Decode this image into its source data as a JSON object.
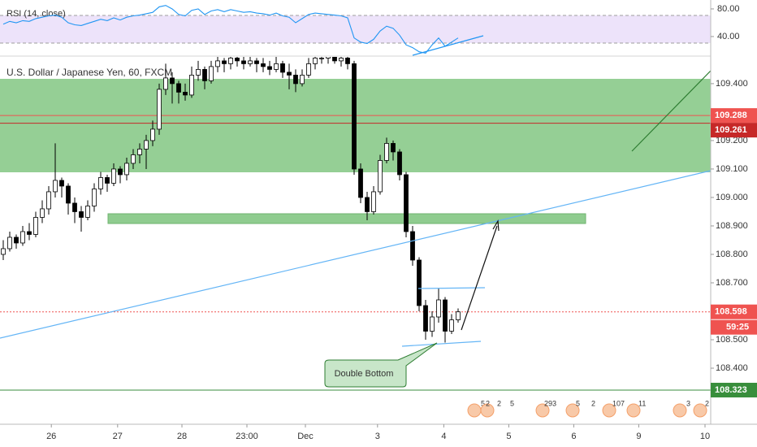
{
  "chart_data": {
    "type": "candlestick",
    "title": "U.S. Dollar / Japanese Yen, 60, FXCM",
    "up_color": "#ffffff",
    "down_color": "#000000",
    "wick_color": "#000000",
    "candles": [
      [
        108.8,
        108.85,
        108.78,
        108.82
      ],
      [
        108.82,
        108.88,
        108.81,
        108.86
      ],
      [
        108.86,
        108.87,
        108.82,
        108.84
      ],
      [
        108.84,
        108.9,
        108.83,
        108.88
      ],
      [
        108.88,
        108.91,
        108.85,
        108.87
      ],
      [
        108.87,
        108.95,
        108.86,
        108.93
      ],
      [
        108.93,
        108.99,
        108.91,
        108.96
      ],
      [
        108.96,
        109.04,
        108.94,
        109.02
      ],
      [
        109.02,
        109.19,
        109.0,
        109.06
      ],
      [
        109.06,
        109.07,
        109.0,
        109.04
      ],
      [
        109.04,
        109.05,
        108.94,
        108.98
      ],
      [
        108.98,
        109.0,
        108.91,
        108.95
      ],
      [
        108.95,
        108.97,
        108.88,
        108.93
      ],
      [
        108.93,
        108.99,
        108.92,
        108.97
      ],
      [
        108.97,
        109.05,
        108.95,
        109.03
      ],
      [
        109.03,
        109.09,
        109.01,
        109.07
      ],
      [
        109.07,
        109.08,
        109.02,
        109.05
      ],
      [
        109.05,
        109.12,
        109.04,
        109.1
      ],
      [
        109.1,
        109.11,
        109.05,
        109.08
      ],
      [
        109.08,
        109.14,
        109.06,
        109.12
      ],
      [
        109.12,
        109.17,
        109.1,
        109.15
      ],
      [
        109.15,
        109.19,
        109.12,
        109.17
      ],
      [
        109.17,
        109.22,
        109.1,
        109.2
      ],
      [
        109.2,
        109.27,
        109.18,
        109.24
      ],
      [
        109.24,
        109.4,
        109.22,
        109.38
      ],
      [
        109.38,
        109.47,
        109.36,
        109.42
      ],
      [
        109.42,
        109.44,
        109.33,
        109.4
      ],
      [
        109.4,
        109.41,
        109.33,
        109.37
      ],
      [
        109.37,
        109.4,
        109.34,
        109.36
      ],
      [
        109.36,
        109.46,
        109.35,
        109.43
      ],
      [
        109.43,
        109.48,
        109.41,
        109.45
      ],
      [
        109.45,
        109.46,
        109.38,
        109.41
      ],
      [
        109.41,
        109.48,
        109.4,
        109.46
      ],
      [
        109.46,
        109.5,
        109.44,
        109.48
      ],
      [
        109.48,
        109.49,
        109.44,
        109.47
      ],
      [
        109.47,
        109.5,
        109.45,
        109.49
      ],
      [
        109.49,
        109.5,
        109.46,
        109.48
      ],
      [
        109.48,
        109.5,
        109.45,
        109.47
      ],
      [
        109.47,
        109.5,
        109.46,
        109.48
      ],
      [
        109.48,
        109.49,
        109.44,
        109.47
      ],
      [
        109.47,
        109.49,
        109.44,
        109.46
      ],
      [
        109.46,
        109.48,
        109.43,
        109.45
      ],
      [
        109.45,
        109.5,
        109.44,
        109.47
      ],
      [
        109.47,
        109.48,
        109.42,
        109.44
      ],
      [
        109.44,
        109.47,
        109.38,
        109.43
      ],
      [
        109.43,
        109.45,
        109.37,
        109.4
      ],
      [
        109.4,
        109.45,
        109.39,
        109.43
      ],
      [
        109.43,
        109.49,
        109.42,
        109.47
      ],
      [
        109.47,
        109.5,
        109.45,
        109.49
      ],
      [
        109.49,
        109.5,
        109.47,
        109.49
      ],
      [
        109.49,
        109.51,
        109.47,
        109.5
      ],
      [
        109.5,
        109.51,
        109.47,
        109.48
      ],
      [
        109.48,
        109.5,
        109.46,
        109.49
      ],
      [
        109.49,
        109.5,
        109.45,
        109.47
      ],
      [
        109.47,
        109.48,
        109.08,
        109.1
      ],
      [
        109.1,
        109.12,
        108.98,
        109.0
      ],
      [
        109.0,
        109.02,
        108.92,
        108.95
      ],
      [
        108.95,
        109.04,
        108.94,
        109.02
      ],
      [
        109.02,
        109.15,
        109.01,
        109.13
      ],
      [
        109.13,
        109.21,
        109.12,
        109.19
      ],
      [
        109.19,
        109.2,
        109.13,
        109.16
      ],
      [
        109.16,
        109.17,
        109.06,
        109.08
      ],
      [
        109.08,
        109.09,
        108.86,
        108.88
      ],
      [
        108.88,
        108.9,
        108.76,
        108.78
      ],
      [
        108.78,
        108.79,
        108.6,
        108.62
      ],
      [
        108.62,
        108.64,
        108.5,
        108.53
      ],
      [
        108.53,
        108.6,
        108.51,
        108.58
      ],
      [
        108.58,
        108.68,
        108.56,
        108.64
      ],
      [
        108.64,
        108.65,
        108.49,
        108.53
      ],
      [
        108.53,
        108.59,
        108.52,
        108.57
      ],
      [
        108.57,
        108.61,
        108.56,
        108.598
      ]
    ],
    "xlim": [
      -0.5,
      108.875
    ],
    "xticks": [
      {
        "value": 7.4,
        "label": "26"
      },
      {
        "value": 17.6,
        "label": "27"
      },
      {
        "value": 27.5,
        "label": "28"
      },
      {
        "value": 37.5,
        "label": "23:00"
      },
      {
        "value": 46.5,
        "label": "Dec"
      },
      {
        "value": 57.6,
        "label": "3"
      },
      {
        "value": 67.8,
        "label": "4"
      },
      {
        "value": 77.8,
        "label": "5"
      },
      {
        "value": 87.8,
        "label": "6"
      },
      {
        "value": 97.8,
        "label": "9"
      },
      {
        "value": 108,
        "label": "10"
      }
    ],
    "ylim": [
      108.203,
      109.494
    ],
    "yticks": [
      {
        "value": 108.4,
        "label": "108.400"
      },
      {
        "value": 108.5,
        "label": "108.500"
      },
      {
        "value": 108.6,
        "label": "108.600"
      },
      {
        "value": 108.7,
        "label": "108.700"
      },
      {
        "value": 108.8,
        "label": "108.800"
      },
      {
        "value": 108.9,
        "label": "108.900"
      },
      {
        "value": 109.0,
        "label": "109.000"
      },
      {
        "value": 109.1,
        "label": "109.100"
      },
      {
        "value": 109.2,
        "label": "109.200"
      },
      {
        "value": 109.4,
        "label": "109.400"
      }
    ],
    "price_lines": [
      {
        "value": 109.288,
        "color": "#ef5350",
        "style": "solid"
      },
      {
        "value": 109.261,
        "color": "#c62828",
        "style": "solid"
      },
      {
        "value": 108.598,
        "color": "#ef5350",
        "style": "dotted"
      },
      {
        "value": 108.323,
        "color": "#388e3c",
        "style": "solid"
      }
    ],
    "countdown": "59:25",
    "annotation": "Double Bottom",
    "events": [
      "5",
      "2",
      "2",
      "5",
      "293",
      "5",
      "2",
      "107",
      "11",
      "3",
      "2"
    ],
    "rsi": {
      "title": "RSI (14, close)",
      "color": "#2196f3",
      "values": [
        58,
        62,
        60,
        63,
        62,
        66,
        68,
        70,
        71,
        68,
        60,
        57,
        56,
        59,
        62,
        65,
        63,
        67,
        64,
        68,
        70,
        71,
        73,
        75,
        83,
        85,
        80,
        72,
        70,
        78,
        80,
        72,
        77,
        79,
        76,
        79,
        77,
        75,
        76,
        74,
        73,
        71,
        74,
        70,
        68,
        60,
        66,
        72,
        74,
        73,
        72,
        71,
        70,
        67,
        38,
        32,
        30,
        36,
        48,
        55,
        52,
        42,
        28,
        24,
        18,
        16,
        28,
        38,
        26,
        32,
        38
      ],
      "ylim": [
        12.9,
        92.9
      ],
      "yticks": [
        {
          "value": 80,
          "label": "80.00"
        },
        {
          "value": 40,
          "label": "40.00"
        }
      ]
    }
  }
}
